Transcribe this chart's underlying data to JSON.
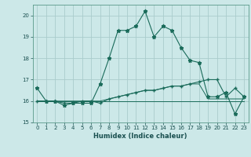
{
  "title": "",
  "xlabel": "Humidex (Indice chaleur)",
  "bg_color": "#cce8e8",
  "grid_color": "#aacccc",
  "line_color": "#1a6b5a",
  "xlim": [
    -0.5,
    23.5
  ],
  "ylim": [
    15,
    20.5
  ],
  "yticks": [
    15,
    16,
    17,
    18,
    19,
    20
  ],
  "xticks": [
    0,
    1,
    2,
    3,
    4,
    5,
    6,
    7,
    8,
    9,
    10,
    11,
    12,
    13,
    14,
    15,
    16,
    17,
    18,
    19,
    20,
    21,
    22,
    23
  ],
  "line1_x": [
    0,
    1,
    2,
    3,
    4,
    5,
    6,
    7,
    8,
    9,
    10,
    11,
    12,
    13,
    14,
    15,
    16,
    17,
    18,
    19,
    20,
    21,
    22,
    23
  ],
  "line1_y": [
    16.6,
    16.0,
    16.0,
    15.8,
    15.9,
    15.9,
    15.9,
    16.8,
    18.0,
    19.3,
    19.3,
    19.5,
    20.2,
    19.0,
    19.5,
    19.3,
    18.5,
    17.9,
    17.8,
    16.2,
    16.2,
    16.4,
    15.4,
    16.2
  ],
  "line2_x": [
    0,
    1,
    2,
    3,
    4,
    5,
    6,
    7,
    8,
    9,
    10,
    11,
    12,
    13,
    14,
    15,
    16,
    17,
    18,
    19,
    20,
    21,
    22,
    23
  ],
  "line2_y": [
    16.0,
    16.0,
    16.0,
    15.9,
    15.9,
    16.0,
    16.0,
    15.9,
    16.1,
    16.2,
    16.3,
    16.4,
    16.5,
    16.5,
    16.6,
    16.7,
    16.7,
    16.8,
    16.9,
    17.0,
    17.0,
    16.2,
    16.6,
    16.2
  ],
  "line3_x": [
    0,
    1,
    2,
    3,
    4,
    5,
    6,
    7,
    8,
    9,
    10,
    11,
    12,
    13,
    14,
    15,
    16,
    17,
    18,
    19,
    20,
    21,
    22,
    23
  ],
  "line3_y": [
    16.0,
    16.0,
    16.0,
    16.0,
    16.0,
    16.0,
    16.0,
    16.0,
    16.0,
    16.0,
    16.0,
    16.0,
    16.0,
    16.0,
    16.0,
    16.0,
    16.0,
    16.0,
    16.0,
    16.0,
    16.0,
    16.0,
    16.0,
    16.0
  ],
  "line4_x": [
    0,
    1,
    2,
    3,
    4,
    5,
    6,
    7,
    8,
    9,
    10,
    11,
    12,
    13,
    14,
    15,
    16,
    17,
    18,
    19,
    20,
    21,
    22,
    23
  ],
  "line4_y": [
    16.0,
    16.0,
    16.0,
    16.0,
    16.0,
    16.0,
    16.0,
    16.0,
    16.1,
    16.2,
    16.3,
    16.4,
    16.5,
    16.5,
    16.6,
    16.7,
    16.7,
    16.8,
    16.8,
    16.1,
    16.1,
    16.1,
    16.1,
    16.1
  ]
}
